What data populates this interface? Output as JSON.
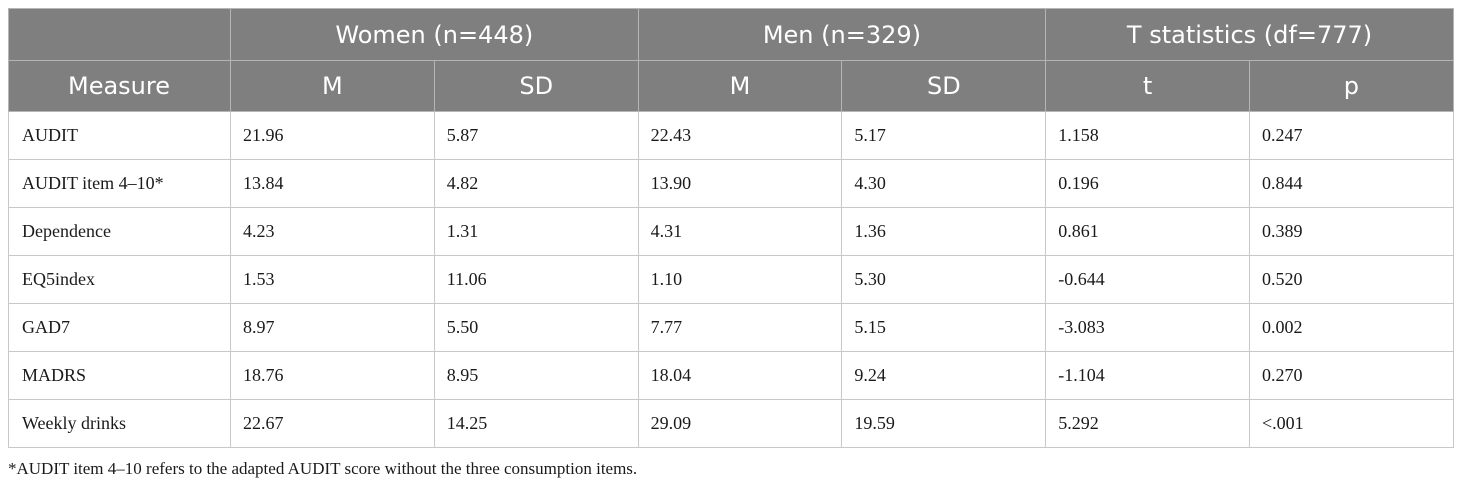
{
  "header": {
    "groups": [
      "Women (n=448)",
      "Men (n=329)",
      "T statistics (df=777)"
    ],
    "columns": [
      "Measure",
      "M",
      "SD",
      "M",
      "SD",
      "t",
      "p"
    ]
  },
  "rows": [
    [
      "AUDIT",
      "21.96",
      "5.87",
      "22.43",
      "5.17",
      "1.158",
      "0.247"
    ],
    [
      "AUDIT item 4–10*",
      "13.84",
      "4.82",
      "13.90",
      "4.30",
      "0.196",
      "0.844"
    ],
    [
      "Dependence",
      "4.23",
      "1.31",
      "4.31",
      "1.36",
      "0.861",
      "0.389"
    ],
    [
      "EQ5index",
      "1.53",
      "11.06",
      "1.10",
      "5.30",
      "-0.644",
      "0.520"
    ],
    [
      "GAD7",
      "8.97",
      "5.50",
      "7.77",
      "5.15",
      "-3.083",
      "0.002"
    ],
    [
      "MADRS",
      "18.76",
      "8.95",
      "18.04",
      "9.24",
      "-1.104",
      "0.270"
    ],
    [
      "Weekly drinks",
      "22.67",
      "14.25",
      "29.09",
      "19.59",
      "5.292",
      "<.001"
    ]
  ],
  "footnote": "*AUDIT item 4–10 refers to the adapted AUDIT score without the three consumption items."
}
